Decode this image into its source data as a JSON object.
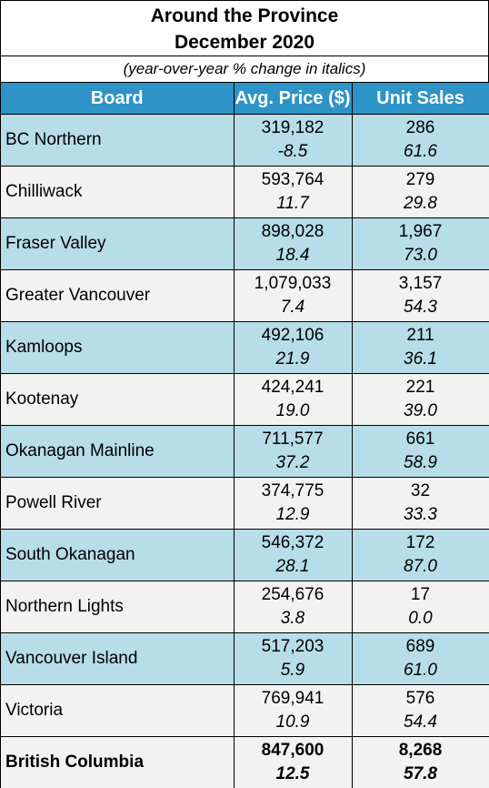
{
  "header": {
    "title_line1": "Around the Province",
    "title_line2": "December 2020",
    "subtitle": "(year-over-year % change in italics)"
  },
  "table": {
    "columns": [
      "Board",
      "Avg. Price ($)",
      "Unit Sales"
    ],
    "rows": [
      {
        "board": "BC Northern",
        "price": "319,182",
        "price_change": "-8.5",
        "sales": "286",
        "sales_change": "61.6"
      },
      {
        "board": "Chilliwack",
        "price": "593,764",
        "price_change": "11.7",
        "sales": "279",
        "sales_change": "29.8"
      },
      {
        "board": "Fraser Valley",
        "price": "898,028",
        "price_change": "18.4",
        "sales": "1,967",
        "sales_change": "73.0"
      },
      {
        "board": "Greater Vancouver",
        "price": "1,079,033",
        "price_change": "7.4",
        "sales": "3,157",
        "sales_change": "54.3"
      },
      {
        "board": "Kamloops",
        "price": "492,106",
        "price_change": "21.9",
        "sales": "211",
        "sales_change": "36.1"
      },
      {
        "board": "Kootenay",
        "price": "424,241",
        "price_change": "19.0",
        "sales": "221",
        "sales_change": "39.0"
      },
      {
        "board": "Okanagan Mainline",
        "price": "711,577",
        "price_change": "37.2",
        "sales": "661",
        "sales_change": "58.9"
      },
      {
        "board": "Powell River",
        "price": "374,775",
        "price_change": "12.9",
        "sales": "32",
        "sales_change": "33.3"
      },
      {
        "board": "South Okanagan",
        "price": "546,372",
        "price_change": "28.1",
        "sales": "172",
        "sales_change": "87.0"
      },
      {
        "board": "Northern Lights",
        "price": "254,676",
        "price_change": "3.8",
        "sales": "17",
        "sales_change": "0.0"
      },
      {
        "board": "Vancouver Island",
        "price": "517,203",
        "price_change": "5.9",
        "sales": "689",
        "sales_change": "61.0"
      },
      {
        "board": "Victoria",
        "price": "769,941",
        "price_change": "10.9",
        "sales": "576",
        "sales_change": "54.4"
      },
      {
        "board": "British Columbia",
        "price": "847,600",
        "price_change": "12.5",
        "sales": "8,268",
        "sales_change": "57.8"
      }
    ]
  }
}
